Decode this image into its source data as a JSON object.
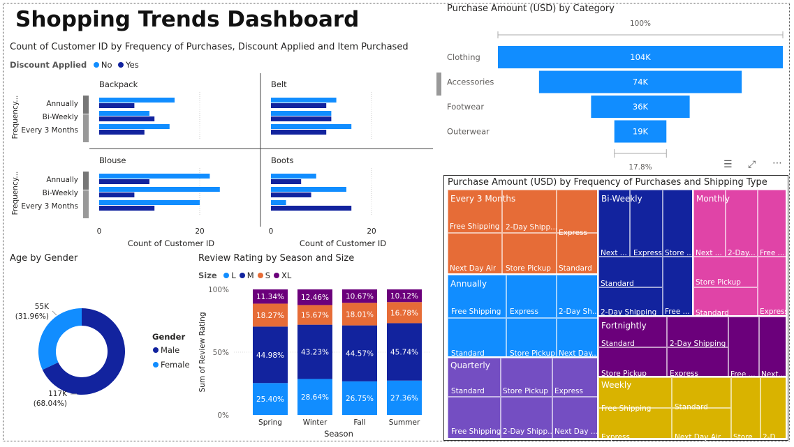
{
  "dashboard": {
    "title": "Shopping Trends Dashboard"
  },
  "colors": {
    "light_blue": "#118DFF",
    "dark_blue": "#12239E",
    "orange": "#E66C37",
    "purple": "#6B007B",
    "gray_text": "#605E5C"
  },
  "small_multiples": {
    "title": "Count of Customer ID by Frequency of Purchases, Discount Applied and Item Purchased",
    "legend_title": "Discount Applied",
    "legend": [
      "No",
      "Yes"
    ],
    "y_axis_title": "Frequency...",
    "x_axis_title": "Count of Customer ID",
    "x_ticks": [
      "0",
      "20"
    ],
    "chart_data": {
      "type": "bar",
      "orientation": "horizontal",
      "categories": [
        "Annually",
        "Bi-Weekly",
        "Every 3 Months"
      ],
      "xlim": [
        0,
        32
      ],
      "panels": [
        {
          "name": "Backpack",
          "series": [
            {
              "name": "No",
              "values": [
                15,
                10,
                14
              ]
            },
            {
              "name": "Yes",
              "values": [
                7,
                11,
                9
              ]
            }
          ]
        },
        {
          "name": "Belt",
          "series": [
            {
              "name": "No",
              "values": [
                13,
                12,
                16
              ]
            },
            {
              "name": "Yes",
              "values": [
                11,
                12,
                11
              ]
            }
          ]
        },
        {
          "name": "Blouse",
          "series": [
            {
              "name": "No",
              "values": [
                22,
                24,
                20
              ]
            },
            {
              "name": "Yes",
              "values": [
                10,
                7,
                11
              ]
            }
          ]
        },
        {
          "name": "Boots",
          "series": [
            {
              "name": "No",
              "values": [
                9,
                15,
                3
              ]
            },
            {
              "name": "Yes",
              "values": [
                6,
                8,
                16
              ]
            }
          ]
        }
      ]
    }
  },
  "funnel": {
    "title": "Purchase Amount (USD) by Category",
    "top_label": "100%",
    "bottom_label": "17.8%",
    "chart_data": {
      "type": "funnel",
      "categories": [
        "Clothing",
        "Accessories",
        "Footwear",
        "Outerwear"
      ],
      "values": [
        104,
        74,
        36,
        19
      ],
      "labels": [
        "104K",
        "74K",
        "36K",
        "19K"
      ]
    }
  },
  "donut": {
    "title": "Age by Gender",
    "legend_title": "Gender",
    "chart_data": {
      "type": "pie",
      "categories": [
        "Male",
        "Female"
      ],
      "values": [
        68.04,
        31.96
      ],
      "value_labels": [
        "117K",
        "55K"
      ],
      "pct_labels": [
        "(68.04%)",
        "(31.96%)"
      ]
    }
  },
  "stacked": {
    "title": "Review Rating by Season and Size",
    "legend_title": "Size",
    "y_axis_title": "Sum of Review Rating",
    "x_axis_title": "Season",
    "y_ticks": [
      "100%",
      "50%",
      "0%"
    ],
    "chart_data": {
      "type": "bar",
      "stacked": "100%",
      "categories": [
        "Spring",
        "Winter",
        "Fall",
        "Summer"
      ],
      "series": [
        {
          "name": "L",
          "values": [
            25.4,
            28.64,
            26.75,
            27.36
          ],
          "labels": [
            "25.40%",
            "28.64%",
            "26.75%",
            "27.36%"
          ]
        },
        {
          "name": "M",
          "values": [
            44.98,
            43.23,
            44.57,
            45.74
          ],
          "labels": [
            "44.98%",
            "43.23%",
            "44.57%",
            "45.74%"
          ]
        },
        {
          "name": "S",
          "values": [
            18.27,
            15.67,
            18.01,
            16.78
          ],
          "labels": [
            "18.27%",
            "15.67%",
            "18.01%",
            "16.78%"
          ]
        },
        {
          "name": "XL",
          "values": [
            11.34,
            12.46,
            10.67,
            10.12
          ],
          "labels": [
            "11.34%",
            "12.46%",
            "10.67%",
            "10.12%"
          ]
        }
      ]
    }
  },
  "treemap": {
    "title": "Purchase Amount (USD) by Frequency of Purchases and Shipping Type",
    "chart_data": {
      "type": "treemap",
      "groups": [
        {
          "name": "Every 3 Months",
          "children": [
            "Free Shipping",
            "2-Day Shipp...",
            "Express",
            "Next Day Air",
            "Store Pickup",
            "Standard"
          ]
        },
        {
          "name": "Annually",
          "children": [
            "Free Shipping",
            "Express",
            "2-Day Sh...",
            "Standard",
            "Store Pickup",
            "Next Day..."
          ]
        },
        {
          "name": "Quarterly",
          "children": [
            "Standard",
            "Store Pickup",
            "Express",
            "Free Shipping",
            "2-Day Shipp...",
            "Next Day ..."
          ]
        },
        {
          "name": "Bi-Weekly",
          "children": [
            "Next ...",
            "Express",
            "Store ...",
            "Standard",
            "2-Day Shipping",
            "Free ..."
          ]
        },
        {
          "name": "Monthly",
          "children": [
            "Next ...",
            "2-Day...",
            "Free ...",
            "Store Pickup",
            "Standard",
            "Express"
          ]
        },
        {
          "name": "Fortnightly",
          "children": [
            "Standard",
            "2-Day Shipping",
            "Store Pickup",
            "Express",
            "Free ...",
            "Next..."
          ]
        },
        {
          "name": "Weekly",
          "children": [
            "Free Shipping",
            "Standard",
            "Express",
            "Next Day Air",
            "Store...",
            "2-D..."
          ]
        }
      ]
    }
  }
}
